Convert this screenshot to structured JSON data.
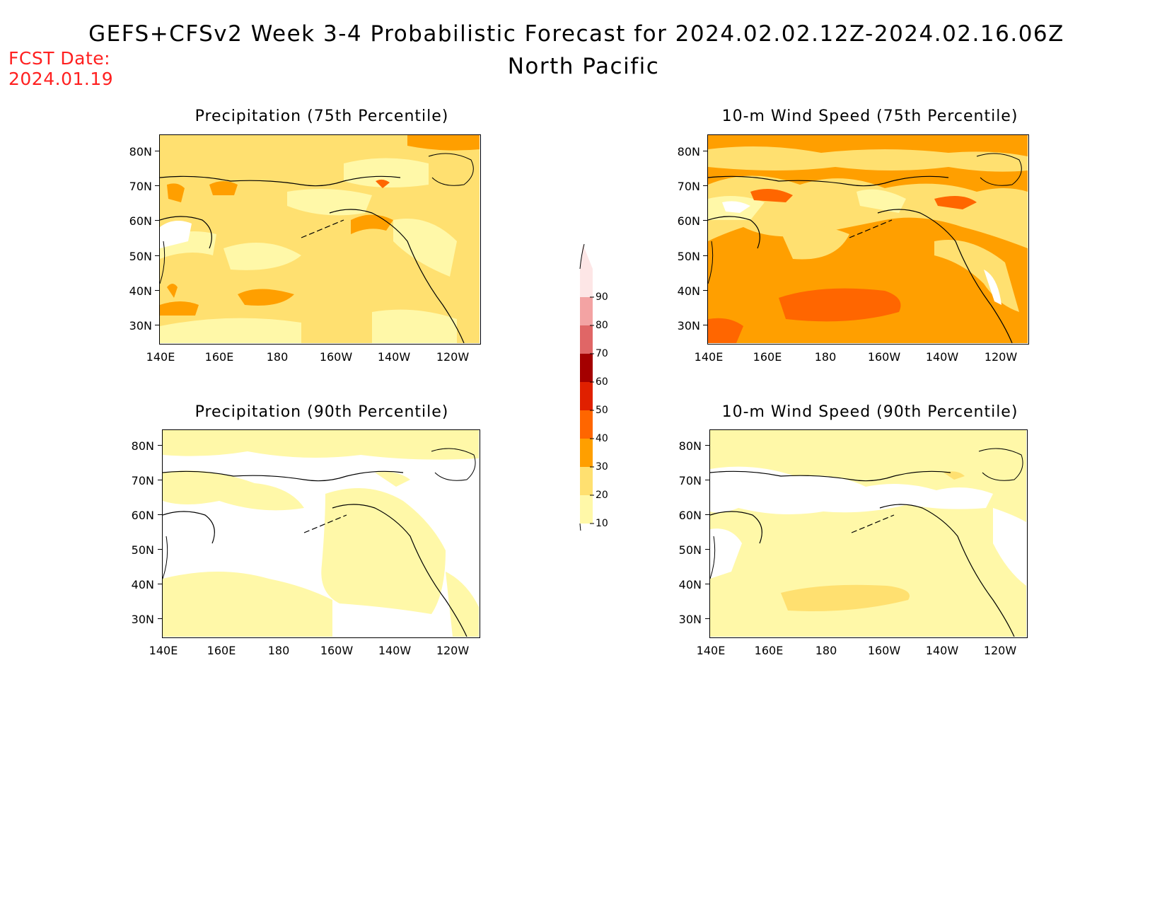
{
  "title_line1": "GEFS+CFSv2 Week 3-4 Probabilistic Forecast for 2024.02.02.12Z-2024.02.16.06Z",
  "title_line2": "North Pacific",
  "fcst_label": "FCST Date:",
  "fcst_date": "2024.01.19",
  "lat_labels": [
    "80N",
    "70N",
    "60N",
    "50N",
    "40N",
    "30N"
  ],
  "lon_labels": [
    "140E",
    "160E",
    "180",
    "160W",
    "140W",
    "120W"
  ],
  "panels": [
    {
      "title": "Precipitation (75th Percentile)",
      "dominant": "20-30",
      "secondary": "10-20",
      "highlight": "30-40"
    },
    {
      "title": "10-m Wind Speed (75th Percentile)",
      "dominant": "30-40",
      "secondary": "20-30",
      "highlight": "40-50"
    },
    {
      "title": "Precipitation (90th Percentile)",
      "dominant": "10-20",
      "secondary": "below 10"
    },
    {
      "title": "10-m Wind Speed (90th Percentile)",
      "dominant": "10-20",
      "secondary": "20-30"
    }
  ],
  "colorbar": {
    "labels": [
      "90",
      "80",
      "70",
      "60",
      "50",
      "40",
      "30",
      "20",
      "10"
    ],
    "colors": [
      "#fde6e6",
      "#f3a3a3",
      "#e06666",
      "#a40000",
      "#e02000",
      "#ff6600",
      "#ff9f00",
      "#ffe070",
      "#fff8a8"
    ]
  },
  "colors": {
    "c10": "#fff8a8",
    "c20": "#ffe070",
    "c30": "#ff9f00",
    "c40": "#ff6600",
    "c50": "#e02000",
    "fcst": "#ff2020"
  }
}
